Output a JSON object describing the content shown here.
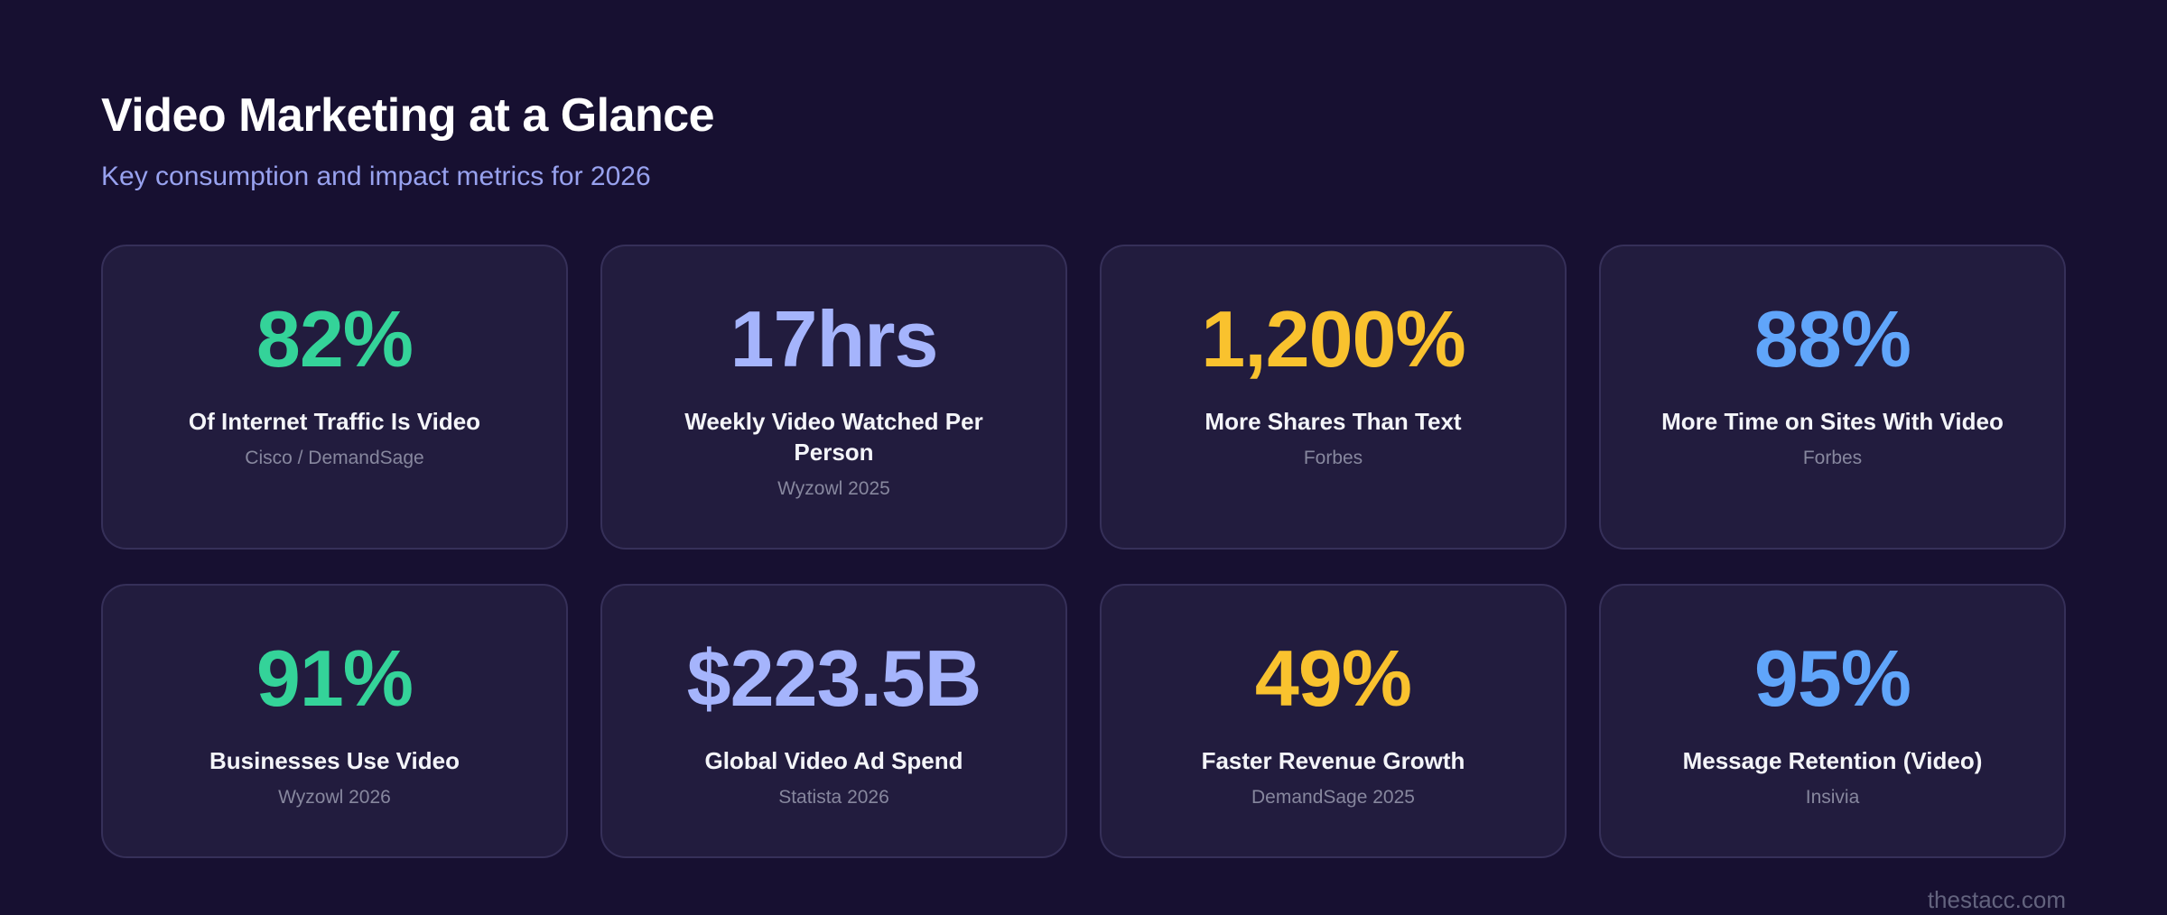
{
  "page": {
    "title": "Video Marketing at a Glance",
    "subtitle": "Key consumption and impact metrics for 2026",
    "watermark": "thestacc.com"
  },
  "colors": {
    "page_background": "#171031",
    "card_background": "#221c3e",
    "card_border": "#363059",
    "title_text": "#ffffff",
    "subtitle_text": "#98a2ef",
    "label_text": "#f4f5f9",
    "source_text": "#87879e",
    "accent_green": "#34d399",
    "accent_periwinkle": "#a5b4fc",
    "accent_yellow": "#f9c22e",
    "accent_blue": "#60a5fa"
  },
  "cards": [
    {
      "value": "82%",
      "label": "Of Internet Traffic Is Video",
      "source": "Cisco / DemandSage",
      "color": "#34d399"
    },
    {
      "value": "17hrs",
      "label": "Weekly Video Watched Per\nPerson",
      "source": "Wyzowl 2025",
      "color": "#a5b4fc"
    },
    {
      "value": "1,200%",
      "label": "More Shares Than Text",
      "source": "Forbes",
      "color": "#f9c22e"
    },
    {
      "value": "88%",
      "label": "More Time on Sites With Video",
      "source": "Forbes",
      "color": "#60a5fa"
    },
    {
      "value": "91%",
      "label": "Businesses Use Video",
      "source": "Wyzowl 2026",
      "color": "#34d399"
    },
    {
      "value": "$223.5B",
      "label": "Global Video Ad Spend",
      "source": "Statista 2026",
      "color": "#a5b4fc"
    },
    {
      "value": "49%",
      "label": "Faster Revenue Growth",
      "source": "DemandSage 2025",
      "color": "#f9c22e"
    },
    {
      "value": "95%",
      "label": "Message Retention (Video)",
      "source": "Insivia",
      "color": "#60a5fa"
    }
  ],
  "chart_data": {
    "type": "table",
    "title": "Video Marketing at a Glance",
    "subtitle": "Key consumption and impact metrics for 2026",
    "columns": [
      "metric_value",
      "metric_label",
      "source"
    ],
    "rows": [
      [
        "82%",
        "Of Internet Traffic Is Video",
        "Cisco / DemandSage"
      ],
      [
        "17hrs",
        "Weekly Video Watched Per Person",
        "Wyzowl 2025"
      ],
      [
        "1,200%",
        "More Shares Than Text",
        "Forbes"
      ],
      [
        "88%",
        "More Time on Sites With Video",
        "Forbes"
      ],
      [
        "91%",
        "Businesses Use Video",
        "Wyzowl 2026"
      ],
      [
        "$223.5B",
        "Global Video Ad Spend",
        "Statista 2026"
      ],
      [
        "49%",
        "Faster Revenue Growth",
        "DemandSage 2025"
      ],
      [
        "95%",
        "Message Retention (Video)",
        "Insivia"
      ]
    ],
    "layout": "4x2 grid of stat cards, dark theme"
  }
}
